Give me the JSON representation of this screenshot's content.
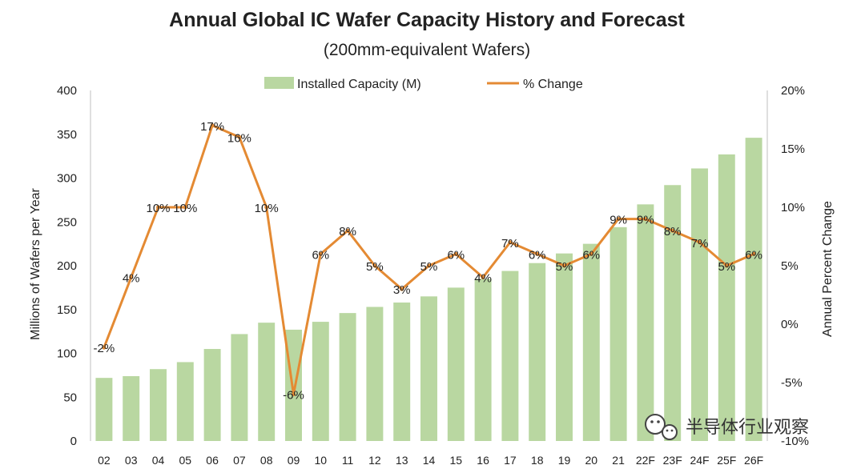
{
  "chart_data": {
    "type": "bar",
    "title": "Annual Global IC Wafer Capacity History and Forecast",
    "subtitle": "(200mm-equivalent Wafers)",
    "ylabel_left": "Millions of Wafers per Year",
    "ylabel_right": "Annual Percent Change",
    "ylim_left": [
      0,
      400
    ],
    "ylim_right": [
      -10,
      20
    ],
    "yticks_left": [
      "0",
      "50",
      "100",
      "150",
      "200",
      "250",
      "300",
      "350",
      "400"
    ],
    "yticks_right": [
      "-10%",
      "-5%",
      "0%",
      "5%",
      "10%",
      "15%",
      "20%"
    ],
    "grid": false,
    "legend_position": "top",
    "categories": [
      "02",
      "03",
      "04",
      "05",
      "06",
      "07",
      "08",
      "09",
      "10",
      "11",
      "12",
      "13",
      "14",
      "15",
      "16",
      "17",
      "18",
      "19",
      "20",
      "21",
      "22F",
      "23F",
      "24F",
      "25F",
      "26F"
    ],
    "series": [
      {
        "name": "Installed Capacity (M)",
        "type": "bar",
        "axis": "left",
        "color": "#b9d7a1",
        "values": [
          72,
          74,
          82,
          90,
          105,
          122,
          135,
          127,
          136,
          146,
          153,
          158,
          165,
          175,
          185,
          194,
          203,
          214,
          225,
          244,
          270,
          292,
          311,
          327,
          346
        ]
      },
      {
        "name": "% Change",
        "type": "line",
        "axis": "right",
        "color": "#e48a33",
        "values": [
          -2,
          4,
          10,
          10,
          17,
          16,
          10,
          -6,
          6,
          8,
          5,
          3,
          5,
          6,
          4,
          7,
          6,
          5,
          6,
          9,
          9,
          8,
          7,
          5,
          6
        ],
        "labels": [
          "-2%",
          "4%",
          "10%",
          "10%",
          "17%",
          "16%",
          "10%",
          "-6%",
          "6%",
          "8%",
          "5%",
          "3%",
          "5%",
          "6%",
          "4%",
          "7%",
          "6%",
          "5%",
          "6%",
          "9%",
          "9%",
          "8%",
          "7%",
          "5%",
          "6%"
        ]
      }
    ]
  },
  "watermark": {
    "text": "半导体行业观察",
    "icon": "wechat-logo-icon"
  }
}
